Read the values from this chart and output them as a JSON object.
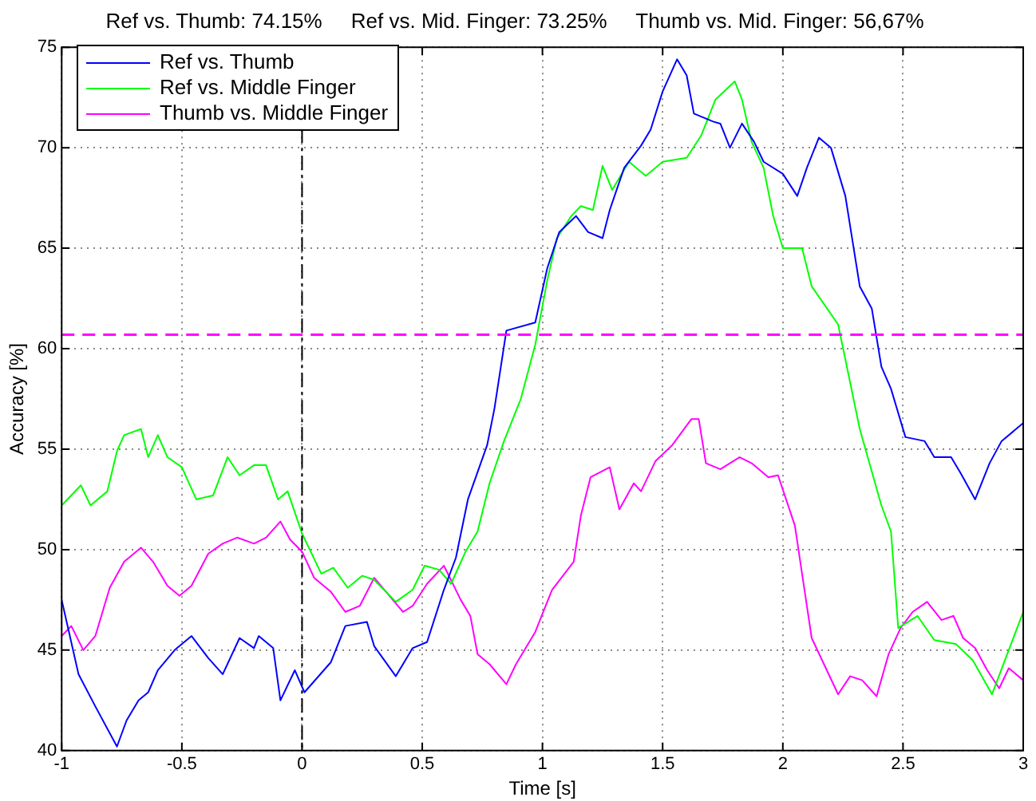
{
  "chart_data": {
    "type": "line",
    "title": "Ref vs. Thumb: 74.15%     Ref vs. Mid. Finger: 73.25%     Thumb vs. Mid. Finger: 56,67%",
    "xlabel": "Time [s]",
    "ylabel": "Accuracy [%]",
    "xlim": [
      -1,
      3
    ],
    "xticks": [
      -1,
      -0.5,
      0,
      0.5,
      1,
      1.5,
      2,
      2.5,
      3
    ],
    "ylim": [
      40,
      75
    ],
    "yticks": [
      40,
      45,
      50,
      55,
      60,
      65,
      70,
      75
    ],
    "grid": true,
    "legend": "top left",
    "marker": "none",
    "line_style": "solid",
    "series": [
      {
        "name": "Ref vs. Thumb",
        "color": "#0000ff",
        "x": [
          -1,
          -0.93,
          -0.86,
          -0.77,
          -0.73,
          -0.68,
          -0.64,
          -0.6,
          -0.53,
          -0.46,
          -0.39,
          -0.33,
          -0.26,
          -0.2,
          -0.18,
          -0.12,
          -0.09,
          -0.03,
          0.01,
          0.12,
          0.18,
          0.27,
          0.3,
          0.39,
          0.46,
          0.52,
          0.59,
          0.64,
          0.69,
          0.77,
          0.8,
          0.85,
          0.97,
          1.02,
          1.07,
          1.14,
          1.19,
          1.25,
          1.28,
          1.34,
          1.41,
          1.45,
          1.5,
          1.56,
          1.6,
          1.63,
          1.71,
          1.74,
          1.78,
          1.83,
          1.88,
          1.92,
          2,
          2.06,
          2.1,
          2.15,
          2.2,
          2.26,
          2.32,
          2.37,
          2.41,
          2.45,
          2.51,
          2.59,
          2.63,
          2.7,
          2.74,
          2.8,
          2.86,
          2.91,
          3
        ],
        "values": [
          47.5,
          43.8,
          42.2,
          40.2,
          41.5,
          42.5,
          42.9,
          44,
          45,
          45.7,
          44.6,
          43.8,
          45.6,
          45.1,
          45.7,
          45.1,
          42.5,
          44,
          42.9,
          44.4,
          46.2,
          46.4,
          45.2,
          43.7,
          45.1,
          45.4,
          48,
          49.6,
          52.5,
          55.2,
          57,
          60.9,
          61.3,
          64,
          65.8,
          66.6,
          65.8,
          65.5,
          66.9,
          69,
          70.1,
          70.9,
          72.8,
          74.4,
          73.6,
          71.7,
          71.3,
          71.2,
          70,
          71.2,
          70.3,
          69.3,
          68.7,
          67.6,
          69,
          70.5,
          70,
          67.6,
          63.1,
          62,
          59.1,
          58,
          55.6,
          55.4,
          54.6,
          54.6,
          53.8,
          52.5,
          54.3,
          55.4,
          56.3
        ]
      },
      {
        "name": "Ref vs. Middle Finger",
        "color": "#00ff00",
        "x": [
          -1,
          -0.92,
          -0.88,
          -0.81,
          -0.77,
          -0.74,
          -0.67,
          -0.64,
          -0.6,
          -0.56,
          -0.5,
          -0.44,
          -0.37,
          -0.31,
          -0.26,
          -0.2,
          -0.15,
          -0.1,
          -0.06,
          0,
          0.08,
          0.13,
          0.19,
          0.25,
          0.3,
          0.39,
          0.46,
          0.51,
          0.57,
          0.62,
          0.68,
          0.73,
          0.78,
          0.84,
          0.91,
          0.97,
          1.02,
          1.06,
          1.12,
          1.16,
          1.21,
          1.25,
          1.29,
          1.36,
          1.43,
          1.5,
          1.6,
          1.66,
          1.72,
          1.8,
          1.83,
          1.87,
          1.92,
          1.96,
          2,
          2.08,
          2.12,
          2.23,
          2.32,
          2.41,
          2.45,
          2.48,
          2.56,
          2.63,
          2.72,
          2.79,
          2.87,
          3
        ],
        "values": [
          52.2,
          53.2,
          52.2,
          52.9,
          54.9,
          55.7,
          56,
          54.6,
          55.7,
          54.6,
          54.1,
          52.5,
          52.7,
          54.6,
          53.7,
          54.2,
          54.2,
          52.5,
          52.9,
          50.8,
          48.8,
          49.1,
          48.1,
          48.7,
          48.5,
          47.4,
          48,
          49.2,
          49,
          48.3,
          49.9,
          50.9,
          53.3,
          55.4,
          57.5,
          60.2,
          63.4,
          65.5,
          66.6,
          67.1,
          66.9,
          69.1,
          67.9,
          69.3,
          68.6,
          69.3,
          69.5,
          70.6,
          72.4,
          73.3,
          72.4,
          70.3,
          69,
          66.6,
          65,
          65,
          63.1,
          61.2,
          56,
          52.2,
          50.9,
          46.1,
          46.7,
          45.5,
          45.3,
          44.5,
          42.8,
          46.9
        ]
      },
      {
        "name": "Thumb vs. Middle Finger",
        "color": "#ff00ff",
        "x": [
          -1,
          -0.96,
          -0.91,
          -0.86,
          -0.8,
          -0.74,
          -0.67,
          -0.62,
          -0.56,
          -0.51,
          -0.46,
          -0.39,
          -0.33,
          -0.27,
          -0.2,
          -0.15,
          -0.09,
          -0.05,
          0,
          0.05,
          0.12,
          0.18,
          0.24,
          0.3,
          0.42,
          0.46,
          0.52,
          0.59,
          0.66,
          0.7,
          0.73,
          0.78,
          0.85,
          0.89,
          0.97,
          1.04,
          1.13,
          1.16,
          1.2,
          1.28,
          1.32,
          1.38,
          1.41,
          1.47,
          1.54,
          1.62,
          1.65,
          1.68,
          1.74,
          1.82,
          1.87,
          1.94,
          1.98,
          2.05,
          2.12,
          2.23,
          2.28,
          2.33,
          2.39,
          2.44,
          2.49,
          2.54,
          2.6,
          2.66,
          2.71,
          2.75,
          2.8,
          2.85,
          2.9,
          2.94,
          3
        ],
        "values": [
          45.7,
          46.2,
          45,
          45.7,
          48.1,
          49.4,
          50.1,
          49.4,
          48.2,
          47.7,
          48.2,
          49.8,
          50.3,
          50.6,
          50.3,
          50.6,
          51.4,
          50.5,
          49.9,
          48.6,
          47.9,
          46.9,
          47.2,
          48.6,
          46.9,
          47.2,
          48.3,
          49.2,
          47.5,
          46.7,
          44.8,
          44.3,
          43.3,
          44.3,
          45.9,
          48,
          49.4,
          51.7,
          53.6,
          54.1,
          52,
          53.3,
          52.9,
          54.4,
          55.2,
          56.5,
          56.5,
          54.3,
          54,
          54.6,
          54.3,
          53.6,
          53.7,
          51.2,
          45.6,
          42.8,
          43.7,
          43.5,
          42.7,
          44.8,
          46.1,
          46.9,
          47.4,
          46.5,
          46.7,
          45.6,
          45.1,
          44,
          43.1,
          44.1,
          43.5
        ]
      }
    ],
    "ref_lines": [
      {
        "axis": "y",
        "value": 60.7,
        "color": "#ff00ff",
        "line_style": "dashed"
      },
      {
        "axis": "x",
        "value": 0,
        "color": "#000000",
        "line_style": "dashed"
      }
    ]
  }
}
